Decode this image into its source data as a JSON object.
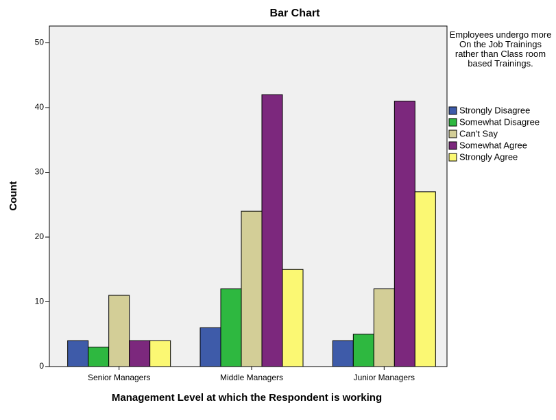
{
  "chart_data": {
    "type": "bar",
    "title": "Bar Chart",
    "x_label": "Management Level at which the Respondent is working",
    "y_label": "Count",
    "legend_title": "Employees undergo more On the Job Trainings rather than Class room based Trainings.",
    "categories": [
      "Senior Managers",
      "Middle Managers",
      "Junior Managers"
    ],
    "series": [
      {
        "name": "Strongly Disagree",
        "color": "#3e5ba9",
        "values": [
          4,
          6,
          4
        ]
      },
      {
        "name": "Somewhat Disagree",
        "color": "#2eb840",
        "values": [
          3,
          12,
          5
        ]
      },
      {
        "name": "Can't Say",
        "color": "#d3ce97",
        "values": [
          11,
          24,
          12
        ]
      },
      {
        "name": "Somewhat Agree",
        "color": "#7c287d",
        "values": [
          4,
          42,
          41
        ]
      },
      {
        "name": "Strongly Agree",
        "color": "#fbf873",
        "values": [
          4,
          15,
          27
        ]
      }
    ],
    "ylim": [
      0,
      52.6
    ],
    "yticks": [
      0,
      10,
      20,
      30,
      40,
      50
    ],
    "legend": "right"
  }
}
